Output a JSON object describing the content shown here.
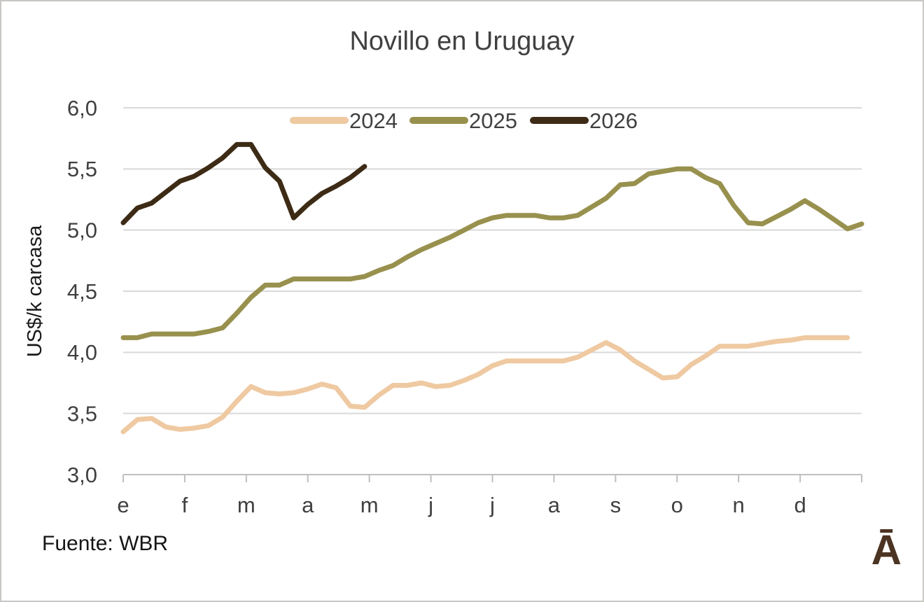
{
  "chart_data": {
    "type": "line",
    "title": "Novillo en Uruguay",
    "ylabel": "US$/k carcasa",
    "xlabel": "",
    "x_unit": "weeks",
    "weeks_per_year": 52,
    "categories": [
      "e",
      "f",
      "m",
      "a",
      "m",
      "j",
      "j",
      "a",
      "s",
      "o",
      "n",
      "d"
    ],
    "ylim": [
      3.0,
      6.0
    ],
    "ytick_step": 0.5,
    "yticks": [
      3.0,
      3.5,
      4.0,
      4.5,
      5.0,
      5.5,
      6.0
    ],
    "ytick_labels": [
      "3,0",
      "3,5",
      "4,0",
      "4,5",
      "5,0",
      "5,5",
      "6,0"
    ],
    "grid": true,
    "legend_position": "top-center",
    "series": [
      {
        "name": "2024",
        "color": "#efc9a1",
        "values": [
          3.35,
          3.45,
          3.46,
          3.39,
          3.37,
          3.38,
          3.4,
          3.47,
          3.6,
          3.72,
          3.67,
          3.66,
          3.67,
          3.7,
          3.74,
          3.71,
          3.56,
          3.55,
          3.65,
          3.73,
          3.73,
          3.75,
          3.72,
          3.73,
          3.77,
          3.82,
          3.89,
          3.93,
          3.93,
          3.93,
          3.93,
          3.93,
          3.96,
          4.02,
          4.08,
          4.02,
          3.93,
          3.86,
          3.79,
          3.8,
          3.9,
          3.97,
          4.05,
          4.05,
          4.05,
          4.07,
          4.09,
          4.1,
          4.12,
          4.12,
          4.12,
          4.12
        ]
      },
      {
        "name": "2025",
        "color": "#98914e",
        "values": [
          4.12,
          4.12,
          4.15,
          4.15,
          4.15,
          4.15,
          4.17,
          4.2,
          4.32,
          4.45,
          4.55,
          4.55,
          4.6,
          4.6,
          4.6,
          4.6,
          4.6,
          4.62,
          4.67,
          4.71,
          4.78,
          4.84,
          4.89,
          4.94,
          5.0,
          5.06,
          5.1,
          5.12,
          5.12,
          5.12,
          5.1,
          5.1,
          5.12,
          5.19,
          5.26,
          5.37,
          5.38,
          5.46,
          5.48,
          5.5,
          5.5,
          5.43,
          5.38,
          5.2,
          5.06,
          5.05,
          5.11,
          5.17,
          5.24,
          5.17,
          5.09,
          5.01,
          5.05
        ]
      },
      {
        "name": "2026",
        "color": "#3d2b16",
        "values": [
          5.06,
          5.18,
          5.22,
          5.31,
          5.4,
          5.44,
          5.51,
          5.59,
          5.7,
          5.7,
          5.51,
          5.4,
          5.1,
          5.21,
          5.3,
          5.36,
          5.43,
          5.52
        ]
      }
    ]
  },
  "source": {
    "label": "Fuente: WBR"
  },
  "branding": {
    "logo_text": "Ā",
    "logo_color": "#4c3423"
  },
  "style_colors": {
    "text": "#404040",
    "gridline": "#d9d9d9",
    "axis_line": "#bfbfbf",
    "background": "#ffffff"
  }
}
